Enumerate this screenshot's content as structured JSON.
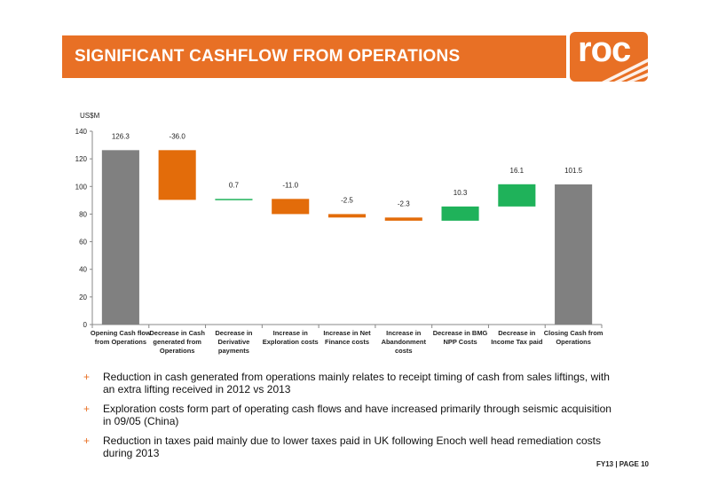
{
  "header": {
    "title": "SIGNIFICANT CASHFLOW FROM OPERATIONS",
    "logo_text": "roc"
  },
  "chart_data": {
    "type": "waterfall",
    "ylabel": "US$M",
    "ylim": [
      0,
      140
    ],
    "yticks": [
      0,
      20,
      40,
      60,
      80,
      100,
      120,
      140
    ],
    "categories": [
      [
        "Opening Cash flow",
        "from Operations"
      ],
      [
        "Decrease in Cash",
        "generated from",
        "Operations"
      ],
      [
        "Decrease in",
        "Derivative",
        "payments"
      ],
      [
        "Increase in",
        "Exploration costs"
      ],
      [
        "Increase in Net",
        "Finance costs"
      ],
      [
        "Increase in",
        "Abandonment",
        "costs"
      ],
      [
        "Decrease in BMG",
        "NPP Costs"
      ],
      [
        "Decrease in",
        "Income Tax paid"
      ],
      [
        "Closing Cash from",
        "Operations"
      ]
    ],
    "values": [
      126.3,
      -36.0,
      0.7,
      -11.0,
      -2.5,
      -2.3,
      10.3,
      16.1,
      101.5
    ],
    "labels": [
      "126.3",
      "-36.0",
      "0.7",
      "-11.0",
      "-2.5",
      "-2.3",
      "10.3",
      "16.1",
      "101.5"
    ],
    "kinds": [
      "total",
      "delta",
      "delta",
      "delta",
      "delta",
      "delta",
      "delta",
      "delta",
      "total"
    ],
    "colors": {
      "total": "#808080",
      "decrease": "#e36c0a",
      "increase": "#1fb25a"
    },
    "grid": false
  },
  "bullets": [
    "Reduction in cash generated from operations mainly relates to receipt timing of cash from sales liftings, with an extra lifting received in 2012 vs 2013",
    "Exploration costs form part of operating cash flows and have increased primarily through seismic acquisition in 09/05 (China)",
    "Reduction in taxes paid mainly due to lower taxes paid in UK following Enoch well head remediation costs during 2013"
  ],
  "bullet_marker": "+",
  "footer": {
    "page": "FY13 | PAGE 10"
  },
  "colors": {
    "brand": "#e87025"
  }
}
